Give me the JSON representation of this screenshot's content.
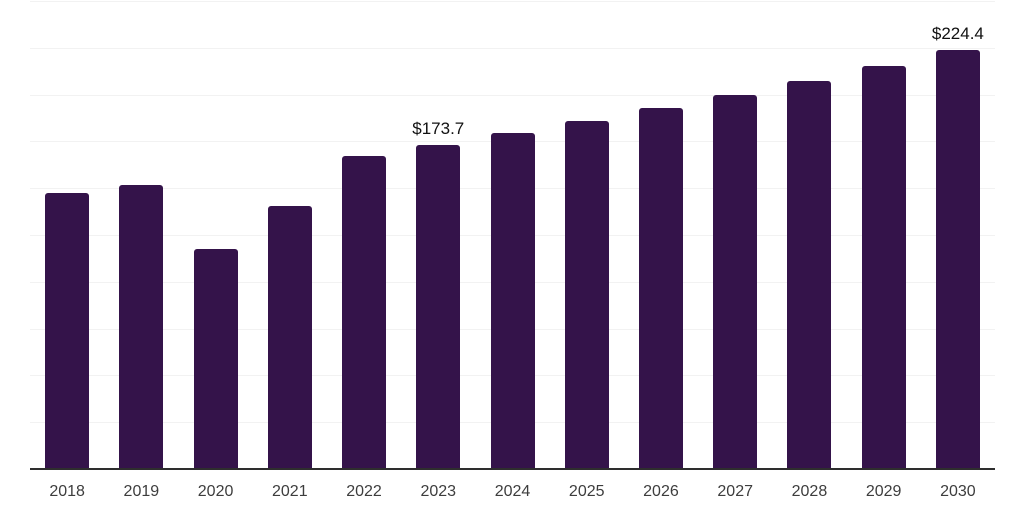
{
  "chart_data": {
    "type": "bar",
    "title": "",
    "xlabel": "",
    "ylabel": "",
    "categories": [
      "2018",
      "2019",
      "2020",
      "2021",
      "2022",
      "2023",
      "2024",
      "2025",
      "2026",
      "2027",
      "2028",
      "2029",
      "2030"
    ],
    "values": [
      147.8,
      152.5,
      118.0,
      141.1,
      167.8,
      173.7,
      179.8,
      186.2,
      193.4,
      200.3,
      207.9,
      215.8,
      224.4
    ],
    "data_labels": {
      "2023": "$173.7",
      "2030": "$224.4"
    },
    "ylim": [
      0,
      250
    ],
    "gridline_interval": 25,
    "grid": "horizontal",
    "legend_position": "none",
    "currency_prefix": "$"
  },
  "colors": {
    "bar": "#34134a",
    "gridline": "#f2f2f2",
    "axis_line": "#2e2e2e",
    "tick_label": "#3d3d3d",
    "data_label": "#111111",
    "background": "#ffffff"
  }
}
